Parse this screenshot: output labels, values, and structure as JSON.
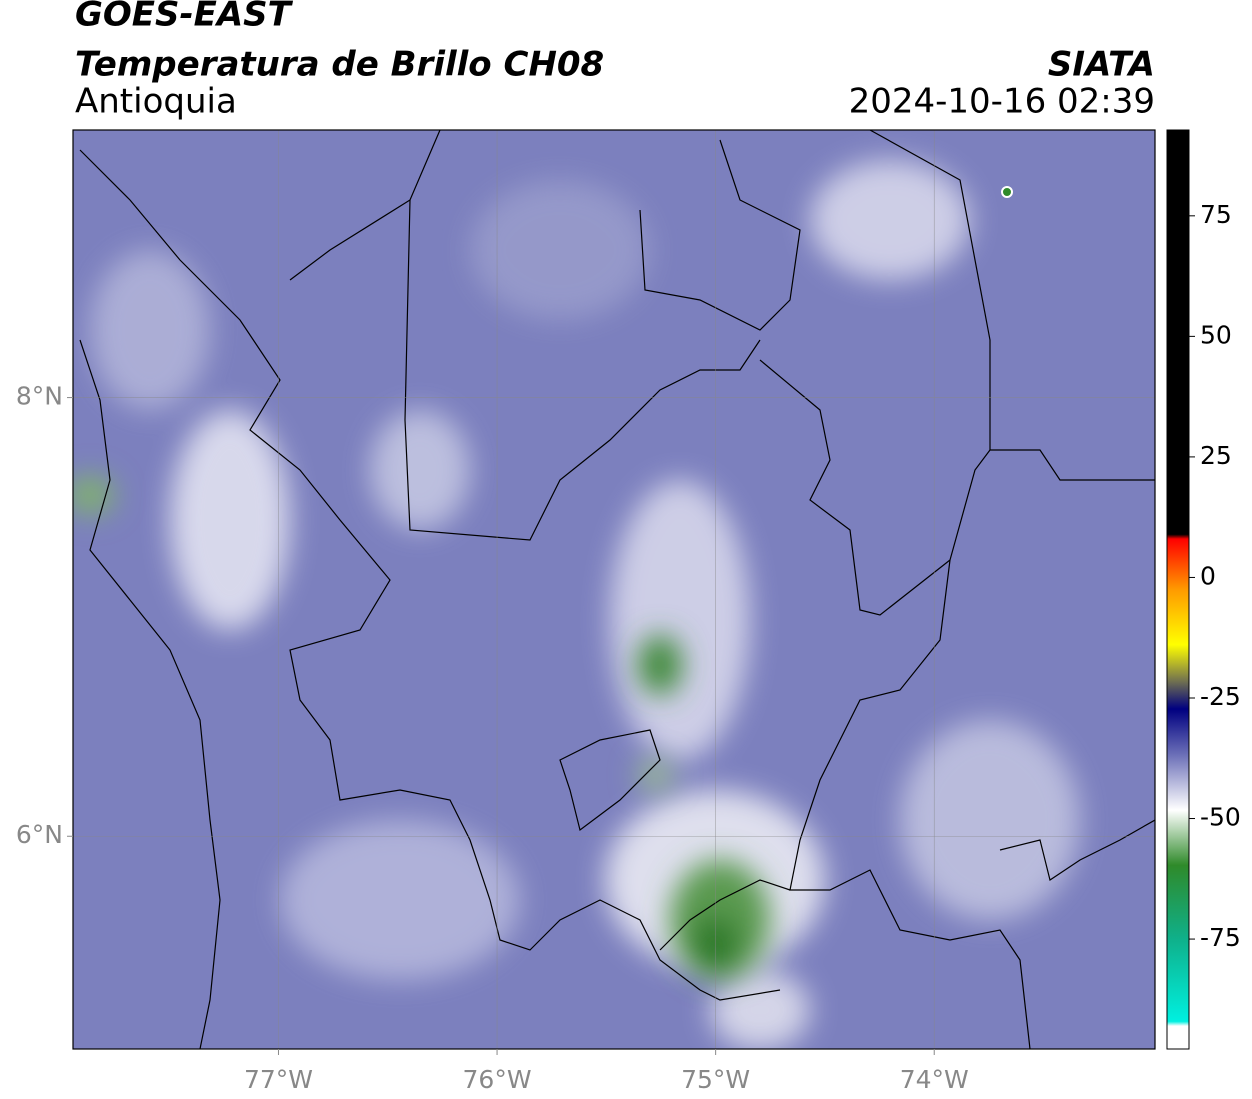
{
  "title": "GOES-EAST",
  "subtitle": "Temperatura de Brillo CH08",
  "region": "Antioquia",
  "source": "SIATA",
  "timestamp": "2024-10-16 02:39",
  "map": {
    "xlim": [
      -77.94,
      -72.99
    ],
    "ylim": [
      5.03,
      9.22
    ],
    "xticks": [
      {
        "value": -77,
        "label": "77°W"
      },
      {
        "value": -76,
        "label": "76°W"
      },
      {
        "value": -75,
        "label": "75°W"
      },
      {
        "value": -74,
        "label": "74°W"
      }
    ],
    "yticks": [
      {
        "value": 8,
        "label": "8°N"
      },
      {
        "value": 6,
        "label": "6°N"
      }
    ],
    "grid": true
  },
  "colorbar": {
    "lim": [
      -97.8,
      92.8
    ],
    "ticks": [
      75,
      50,
      25,
      0,
      -25,
      -50,
      -75
    ]
  }
}
